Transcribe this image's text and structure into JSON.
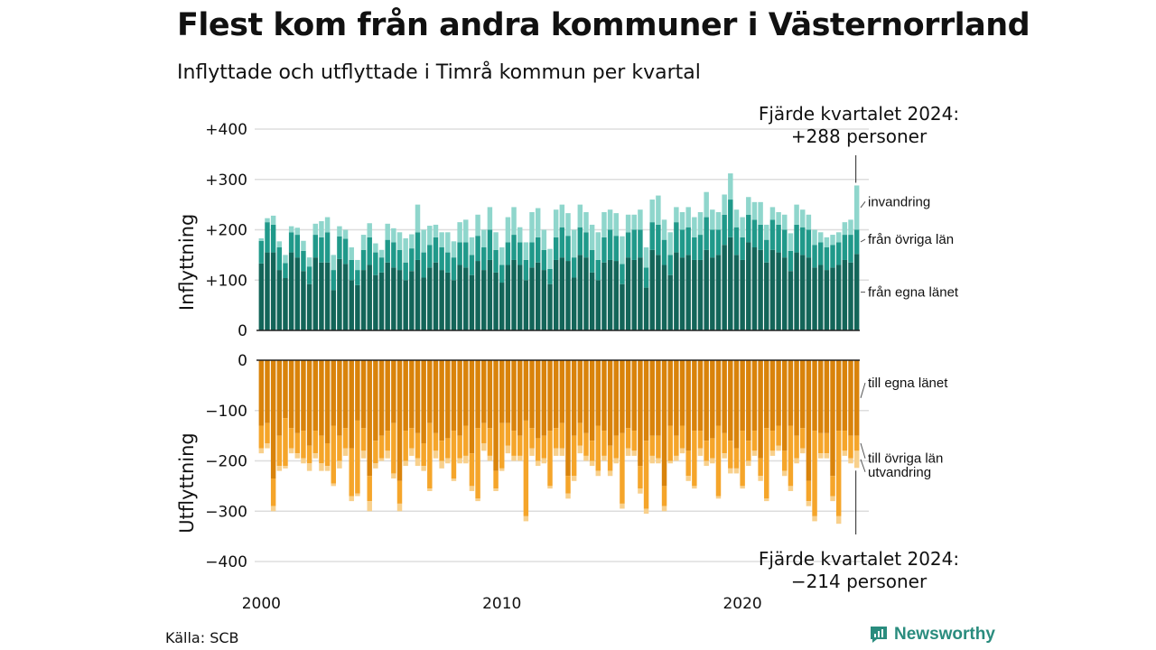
{
  "title": "Flest kom från andra kommuner i Västernorrland",
  "subtitle": "Inflyttade och utflyttade i Timrå kommun per kvartal",
  "source": "Källa: SCB",
  "brand": "Newsworthy",
  "colors": {
    "in_egna": "#136559",
    "in_ovriga": "#20998a",
    "in_invandring": "#8fd6cc",
    "out_egna": "#d9830b",
    "out_ovriga": "#f5a52a",
    "out_utvandring": "#f8d08c",
    "grid": "#dddddd",
    "brand": "#2a8c7e"
  },
  "chart_data": [
    {
      "type": "bar",
      "stacked": true,
      "ylabel": "Inflyttning",
      "ylim": [
        0,
        400
      ],
      "yticks": [
        0,
        100,
        200,
        300,
        400
      ],
      "ytick_labels": [
        "0",
        "+100",
        "+200",
        "+300",
        "+400"
      ],
      "x_start": "2000 Q1",
      "x_end": "2024 Q4",
      "xticks": [
        "2000",
        "2010",
        "2020"
      ],
      "series": [
        {
          "name": "från egna länet",
          "values": [
            133,
            155,
            155,
            120,
            104,
            155,
            145,
            118,
            92,
            145,
            135,
            135,
            80,
            142,
            132,
            100,
            90,
            120,
            130,
            110,
            115,
            135,
            125,
            120,
            100,
            118,
            140,
            105,
            125,
            135,
            120,
            115,
            100,
            130,
            125,
            110,
            138,
            120,
            140,
            115,
            95,
            130,
            140,
            130,
            100,
            125,
            135,
            120,
            92,
            140,
            145,
            138,
            105,
            150,
            145,
            115,
            100,
            135,
            140,
            138,
            92,
            145,
            140,
            145,
            85,
            160,
            150,
            130,
            110,
            155,
            145,
            150,
            140,
            140,
            160,
            145,
            150,
            170,
            185,
            150,
            140,
            175,
            165,
            160,
            135,
            160,
            155,
            145,
            118,
            155,
            150,
            145,
            125,
            130,
            120,
            125,
            130,
            140,
            135,
            152
          ]
        },
        {
          "name": "från övriga län",
          "values": [
            45,
            60,
            55,
            45,
            30,
            40,
            45,
            40,
            35,
            45,
            50,
            60,
            40,
            45,
            50,
            40,
            30,
            40,
            55,
            45,
            30,
            45,
            50,
            40,
            35,
            45,
            55,
            50,
            45,
            50,
            45,
            40,
            45,
            45,
            50,
            40,
            50,
            45,
            60,
            45,
            35,
            45,
            50,
            45,
            40,
            50,
            50,
            40,
            30,
            45,
            60,
            50,
            40,
            55,
            50,
            45,
            40,
            50,
            60,
            50,
            40,
            50,
            60,
            55,
            40,
            55,
            60,
            50,
            40,
            60,
            55,
            55,
            45,
            50,
            65,
            55,
            50,
            60,
            75,
            55,
            45,
            55,
            55,
            50,
            45,
            60,
            55,
            55,
            40,
            55,
            55,
            55,
            45,
            45,
            45,
            45,
            45,
            50,
            55,
            48
          ]
        },
        {
          "name": "invandring",
          "values": [
            5,
            8,
            18,
            12,
            16,
            12,
            14,
            20,
            18,
            22,
            32,
            30,
            30,
            20,
            18,
            25,
            20,
            30,
            28,
            18,
            15,
            32,
            28,
            35,
            48,
            28,
            55,
            45,
            38,
            25,
            30,
            40,
            32,
            40,
            45,
            35,
            42,
            35,
            45,
            35,
            35,
            50,
            55,
            30,
            35,
            60,
            58,
            40,
            40,
            55,
            45,
            45,
            55,
            45,
            40,
            50,
            55,
            50,
            40,
            45,
            55,
            35,
            30,
            40,
            40,
            45,
            58,
            40,
            45,
            30,
            35,
            40,
            40,
            45,
            50,
            40,
            35,
            40,
            52,
            35,
            40,
            35,
            35,
            45,
            30,
            25,
            25,
            30,
            35,
            40,
            35,
            30,
            30,
            20,
            20,
            20,
            20,
            25,
            30,
            88
          ]
        }
      ],
      "annotation": "Fjärde kvartalet 2024:\n+288 personer"
    },
    {
      "type": "bar",
      "stacked": true,
      "ylabel": "Utflyttning",
      "ylim": [
        -400,
        0
      ],
      "yticks": [
        0,
        -100,
        -200,
        -300,
        -400
      ],
      "ytick_labels": [
        "0",
        "−100",
        "−200",
        "−300",
        "−400"
      ],
      "x_start": "2000 Q1",
      "x_end": "2024 Q4",
      "xticks": [
        "2000",
        "2010",
        "2020"
      ],
      "series": [
        {
          "name": "till egna länet",
          "values": [
            -130,
            -125,
            -235,
            -150,
            -115,
            -135,
            -145,
            -140,
            -170,
            -140,
            -150,
            -165,
            -130,
            -150,
            -135,
            -175,
            -120,
            -135,
            -230,
            -160,
            -150,
            -140,
            -125,
            -240,
            -140,
            -135,
            -145,
            -165,
            -125,
            -145,
            -160,
            -155,
            -140,
            -150,
            -130,
            -185,
            -135,
            -125,
            -135,
            -220,
            -125,
            -125,
            -140,
            -150,
            -120,
            -135,
            -155,
            -150,
            -140,
            -135,
            -125,
            -230,
            -150,
            -125,
            -145,
            -160,
            -130,
            -140,
            -170,
            -150,
            -145,
            -135,
            -140,
            -210,
            -160,
            -150,
            -150,
            -250,
            -130,
            -150,
            -130,
            -180,
            -140,
            -140,
            -160,
            -155,
            -130,
            -145,
            -160,
            -175,
            -140,
            -160,
            -140,
            -195,
            -135,
            -140,
            -130,
            -180,
            -130,
            -150,
            -135,
            -240,
            -140,
            -145,
            -145,
            -230,
            -140,
            -140,
            -150,
            -150
          ]
        },
        {
          "name": "till övriga län",
          "values": [
            -45,
            -40,
            -55,
            -60,
            -95,
            -40,
            -40,
            -55,
            -35,
            -45,
            -55,
            -45,
            -115,
            -50,
            -40,
            -95,
            -145,
            -45,
            -50,
            -45,
            -45,
            -40,
            -100,
            -45,
            -60,
            -40,
            -50,
            -45,
            -130,
            -35,
            -40,
            -40,
            -95,
            -45,
            -60,
            -65,
            -140,
            -40,
            -55,
            -35,
            -90,
            -45,
            -50,
            -40,
            -190,
            -40,
            -45,
            -45,
            -110,
            -40,
            -50,
            -35,
            -80,
            -45,
            -45,
            -40,
            -90,
            -50,
            -50,
            -45,
            -140,
            -40,
            -40,
            -45,
            -135,
            -40,
            -45,
            -40,
            -70,
            -40,
            -45,
            -50,
            -110,
            -35,
            -40,
            -40,
            -140,
            -40,
            -55,
            -40,
            -110,
            -40,
            -40,
            -35,
            -140,
            -40,
            -40,
            -40,
            -120,
            -45,
            -40,
            -40,
            -170,
            -40,
            -40,
            -40,
            -170,
            -40,
            -45,
            -30
          ]
        },
        {
          "name": "utvandring",
          "values": [
            -10,
            -10,
            -10,
            -10,
            -5,
            -10,
            -10,
            -10,
            -15,
            -10,
            -15,
            -10,
            -5,
            -15,
            -15,
            -10,
            -5,
            -15,
            -20,
            -10,
            -5,
            -15,
            -10,
            -15,
            -10,
            -15,
            -15,
            -10,
            -5,
            -15,
            -15,
            -10,
            -5,
            -10,
            -15,
            -10,
            -5,
            -15,
            -10,
            -5,
            -5,
            -15,
            -10,
            -10,
            -10,
            -15,
            -10,
            -10,
            -5,
            -15,
            -15,
            -10,
            -10,
            -15,
            -10,
            -10,
            -10,
            -10,
            -10,
            -10,
            -10,
            -15,
            -10,
            -10,
            -10,
            -15,
            -10,
            -10,
            -5,
            -10,
            -10,
            -10,
            -5,
            -15,
            -10,
            -10,
            -5,
            -10,
            -10,
            -10,
            -5,
            -10,
            -10,
            -10,
            -5,
            -10,
            -10,
            -10,
            -10,
            -10,
            -10,
            -10,
            -10,
            -10,
            -10,
            -10,
            -15,
            -10,
            -10,
            -34
          ]
        }
      ],
      "annotation": "Fjärde kvartalet 2024:\n−214 personer"
    }
  ]
}
